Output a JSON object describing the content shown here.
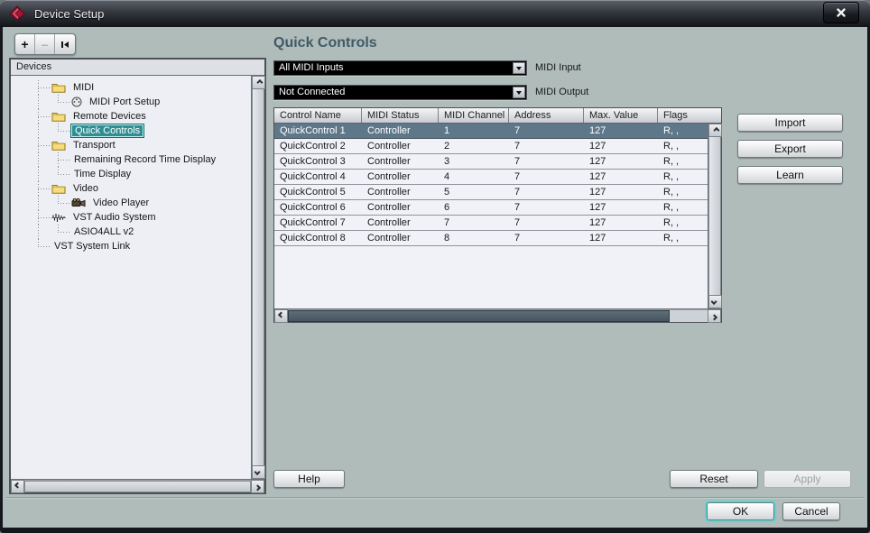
{
  "window": {
    "title": "Device Setup",
    "close_glyph": "x"
  },
  "toolbar": {
    "add_label": "+",
    "remove_label": "–",
    "rewind_icon": "go-to-start"
  },
  "devices_panel": {
    "header": "Devices",
    "tree": [
      {
        "label": "MIDI",
        "depth": 1,
        "icon": "folder",
        "selected": false
      },
      {
        "label": "MIDI Port Setup",
        "depth": 2,
        "icon": "midi-port",
        "selected": false,
        "last": true
      },
      {
        "label": "Remote Devices",
        "depth": 1,
        "icon": "folder",
        "selected": false
      },
      {
        "label": "Quick Controls",
        "depth": 2,
        "icon": null,
        "selected": true,
        "last": true
      },
      {
        "label": "Transport",
        "depth": 1,
        "icon": "folder",
        "selected": false
      },
      {
        "label": "Remaining Record Time Display",
        "depth": 2,
        "icon": null,
        "selected": false
      },
      {
        "label": "Time Display",
        "depth": 2,
        "icon": null,
        "selected": false,
        "last": true
      },
      {
        "label": "Video",
        "depth": 1,
        "icon": "folder",
        "selected": false
      },
      {
        "label": "Video Player",
        "depth": 2,
        "icon": "video",
        "selected": false,
        "last": true
      },
      {
        "label": "VST Audio System",
        "depth": 1,
        "icon": "waveform",
        "selected": false
      },
      {
        "label": "ASIO4ALL v2",
        "depth": 2,
        "icon": null,
        "selected": false,
        "last": true
      },
      {
        "label": "VST System Link",
        "depth": 1,
        "icon": null,
        "selected": false,
        "flush": true,
        "half_main": true
      }
    ]
  },
  "main": {
    "title": "Quick Controls",
    "midi_input": {
      "value": "All MIDI Inputs",
      "label": "MIDI Input"
    },
    "midi_output": {
      "value": "Not Connected",
      "label": "MIDI Output"
    },
    "table": {
      "columns": [
        "Control Name",
        "MIDI Status",
        "MIDI Channel",
        "Address",
        "Max. Value",
        "Flags"
      ],
      "selected_row": 0,
      "rows": [
        [
          "QuickControl 1",
          "Controller",
          "1",
          "7",
          "127",
          "R, ,"
        ],
        [
          "QuickControl 2",
          "Controller",
          "2",
          "7",
          "127",
          "R, ,"
        ],
        [
          "QuickControl 3",
          "Controller",
          "3",
          "7",
          "127",
          "R, ,"
        ],
        [
          "QuickControl 4",
          "Controller",
          "4",
          "7",
          "127",
          "R, ,"
        ],
        [
          "QuickControl 5",
          "Controller",
          "5",
          "7",
          "127",
          "R, ,"
        ],
        [
          "QuickControl 6",
          "Controller",
          "6",
          "7",
          "127",
          "R, ,"
        ],
        [
          "QuickControl 7",
          "Controller",
          "7",
          "7",
          "127",
          "R, ,"
        ],
        [
          "QuickControl 8",
          "Controller",
          "8",
          "7",
          "127",
          "R, ,"
        ]
      ]
    },
    "side_buttons": {
      "import": "Import",
      "export": "Export",
      "learn": "Learn"
    },
    "bottom_buttons": {
      "help": "Help",
      "reset": "Reset",
      "apply": "Apply",
      "apply_enabled": false
    }
  },
  "footer": {
    "ok": "OK",
    "cancel": "Cancel"
  },
  "colors": {
    "dialog_bg": "#afbcb9",
    "tree_selection": "#2f8e92",
    "row_selection": "#5e7889",
    "combo_bg": "#000000",
    "heading": "#3f5a68",
    "ok_focus_ring": "#55d7d5"
  }
}
